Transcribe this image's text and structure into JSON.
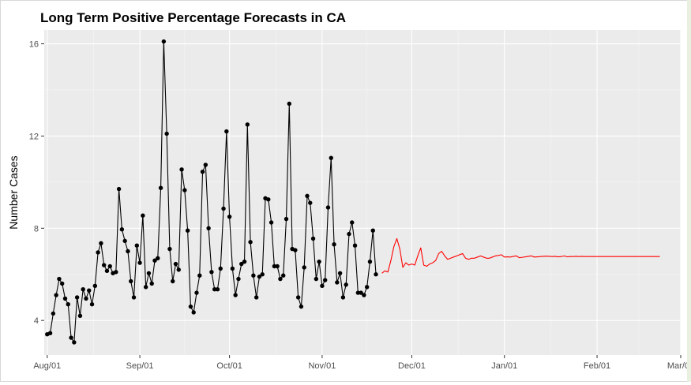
{
  "chart_data": {
    "type": "line",
    "title": "Long Term Positive Percentage Forecasts in CA",
    "xlabel": "",
    "ylabel": "Number Cases",
    "x_axis_type": "date",
    "xlim": [
      "2021-07-31",
      "2022-03-01"
    ],
    "ylim": [
      2.5,
      16.6
    ],
    "x_ticks": [
      {
        "date": "2021-08-01",
        "label": "Aug/01"
      },
      {
        "date": "2021-09-01",
        "label": "Sep/01"
      },
      {
        "date": "2021-10-01",
        "label": "Oct/01"
      },
      {
        "date": "2021-11-01",
        "label": "Nov/01"
      },
      {
        "date": "2021-12-01",
        "label": "Dec/01"
      },
      {
        "date": "2022-01-01",
        "label": "Jan/01"
      },
      {
        "date": "2022-02-01",
        "label": "Feb/01"
      },
      {
        "date": "2022-03-01",
        "label": "Mar/01"
      }
    ],
    "y_ticks": [
      4,
      8,
      12,
      16
    ],
    "grid": true,
    "legend": "none",
    "series": [
      {
        "style": "line-with-points",
        "color": "#000000",
        "start_date": "2021-08-01",
        "step_days": 1,
        "values": [
          3.4,
          3.45,
          4.3,
          5.1,
          5.8,
          5.6,
          4.95,
          4.7,
          3.25,
          3.05,
          5.0,
          4.2,
          5.35,
          4.95,
          5.3,
          4.7,
          5.5,
          6.95,
          7.35,
          6.4,
          6.15,
          6.35,
          6.05,
          6.1,
          9.7,
          7.95,
          7.45,
          7.0,
          5.7,
          5.0,
          7.25,
          6.5,
          8.55,
          5.45,
          6.05,
          5.6,
          6.6,
          6.7,
          9.75,
          16.1,
          12.1,
          7.1,
          5.7,
          6.45,
          6.2,
          10.55,
          9.65,
          7.9,
          4.6,
          4.35,
          5.2,
          5.95,
          10.45,
          10.75,
          8.0,
          6.1,
          5.35,
          5.35,
          6.25,
          8.85,
          12.2,
          8.5,
          6.25,
          5.1,
          5.8,
          6.45,
          6.55,
          12.5,
          7.4,
          5.95,
          5.0,
          5.9,
          6.0,
          9.3,
          9.25,
          8.25,
          6.35,
          6.35,
          5.8,
          5.95,
          8.4,
          13.4,
          7.1,
          7.05,
          5.0,
          4.6,
          6.3,
          9.4,
          9.1,
          7.55,
          5.8,
          6.55,
          5.5,
          5.75,
          8.9,
          11.05,
          7.3,
          5.65,
          6.05,
          5.0,
          5.55,
          7.75,
          8.25,
          7.25,
          5.2,
          5.2,
          5.1,
          5.45,
          6.55,
          7.9,
          6.0
        ]
      },
      {
        "style": "line",
        "color": "#ff0000",
        "start_date": "2021-11-21",
        "step_days": 1,
        "values": [
          6.05,
          6.15,
          6.1,
          6.6,
          7.2,
          7.55,
          7.1,
          6.3,
          6.5,
          6.4,
          6.45,
          6.4,
          6.8,
          7.15,
          6.4,
          6.35,
          6.45,
          6.5,
          6.6,
          6.9,
          7.0,
          6.8,
          6.65,
          6.7,
          6.75,
          6.8,
          6.85,
          6.9,
          6.7,
          6.65,
          6.7,
          6.7,
          6.75,
          6.8,
          6.75,
          6.7,
          6.7,
          6.75,
          6.8,
          6.82,
          6.85,
          6.75,
          6.76,
          6.75,
          6.78,
          6.8,
          6.72,
          6.74,
          6.76,
          6.78,
          6.8,
          6.75,
          6.76,
          6.77,
          6.78,
          6.79,
          6.78,
          6.77,
          6.78,
          6.76,
          6.77,
          6.8,
          6.76,
          6.77,
          6.77,
          6.78,
          6.77,
          6.78,
          6.77,
          6.77,
          6.77,
          6.77,
          6.77,
          6.77,
          6.77,
          6.77,
          6.77,
          6.77,
          6.77,
          6.77,
          6.77,
          6.77,
          6.77,
          6.77,
          6.77,
          6.77,
          6.77,
          6.77,
          6.77,
          6.77,
          6.77,
          6.77,
          6.77,
          6.77
        ]
      }
    ]
  }
}
